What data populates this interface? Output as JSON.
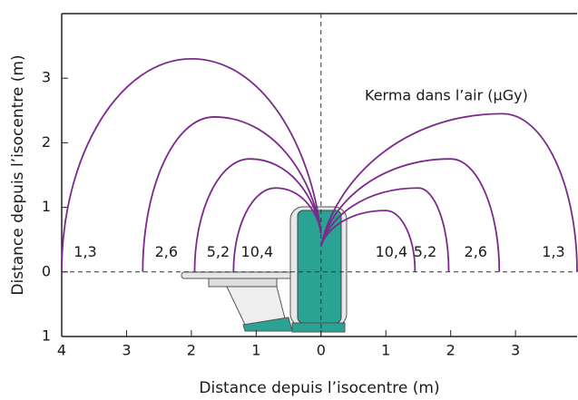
{
  "chart_data": {
    "type": "isodose",
    "annotation": "Kerma dans l’air (µGy)",
    "x_label": "Distance depuis l’isocentre (m)",
    "y_label": "Distance depuis l’isocentre (m)",
    "xlim": [
      -4,
      3.95
    ],
    "ylim": [
      -1,
      4
    ],
    "xticks": [
      {
        "value": -4,
        "label": "4"
      },
      {
        "value": -3,
        "label": "3"
      },
      {
        "value": -2,
        "label": "2"
      },
      {
        "value": -1,
        "label": "1"
      },
      0,
      1,
      2,
      3
    ],
    "yticks": [
      {
        "value": -1,
        "label": "1"
      },
      0,
      1,
      2,
      3
    ],
    "color": "#7b2a8c",
    "values": [
      1.3,
      2.6,
      5.2,
      10.4,
      10.4,
      5.2,
      2.6,
      1.3
    ],
    "value_labels": [
      "1,3",
      "2,6",
      "5,2",
      "10,4",
      "10,4",
      "5,2",
      "2,6",
      "1,3"
    ],
    "curves": [
      {
        "x": [
          -4,
          -2,
          0
        ],
        "y": [
          0,
          3.3,
          0.6
        ]
      },
      {
        "x": [
          -2.75,
          -1.65,
          0
        ],
        "y": [
          0,
          2.4,
          0.6
        ]
      },
      {
        "x": [
          -1.95,
          -1.1,
          0
        ],
        "y": [
          0,
          1.75,
          0.6
        ]
      },
      {
        "x": [
          -1.35,
          -0.7,
          0
        ],
        "y": [
          0,
          1.3,
          0.6
        ]
      },
      {
        "x": [
          1.45,
          1.0,
          0
        ],
        "y": [
          0,
          0.95,
          0.4
        ]
      },
      {
        "x": [
          1.97,
          1.5,
          0
        ],
        "y": [
          0,
          1.3,
          0.4
        ]
      },
      {
        "x": [
          2.75,
          2.0,
          0
        ],
        "y": [
          0,
          1.75,
          0.4
        ]
      },
      {
        "x": [
          3.95,
          2.8,
          0
        ],
        "y": [
          0,
          2.45,
          0.4
        ]
      }
    ]
  }
}
